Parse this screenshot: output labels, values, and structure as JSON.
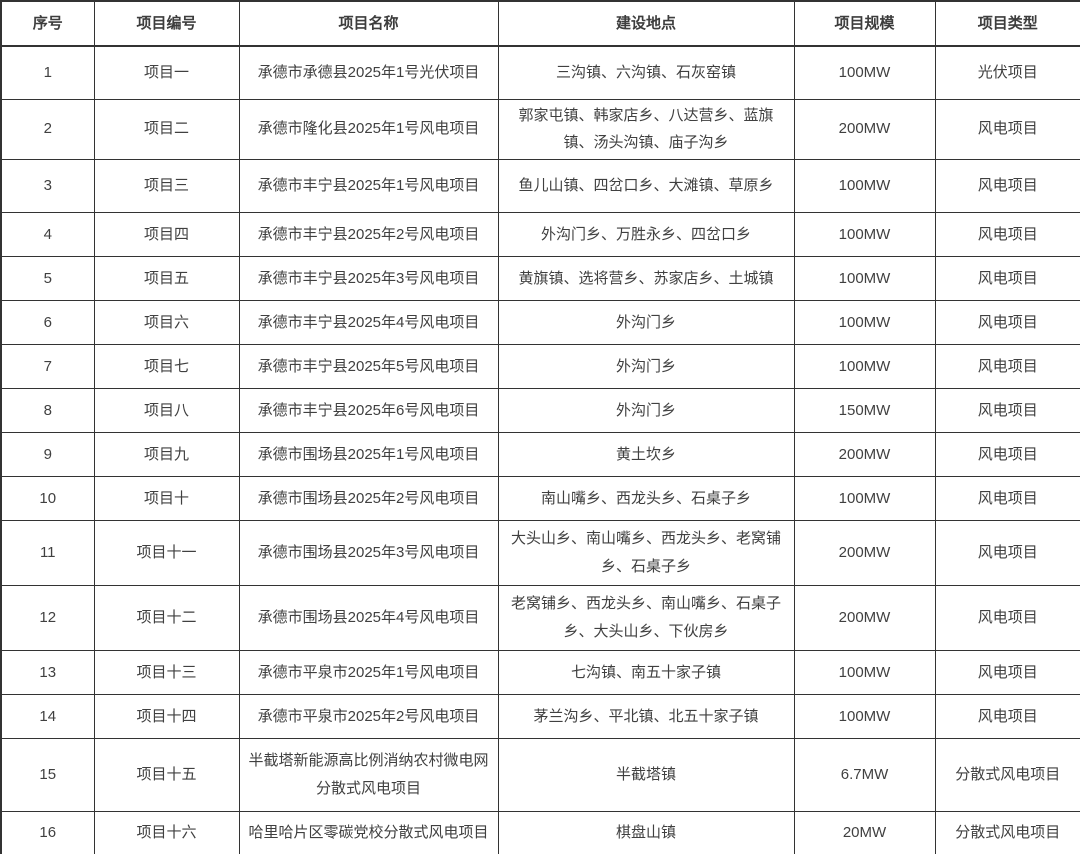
{
  "table": {
    "columns": [
      {
        "key": "index",
        "label": "序号"
      },
      {
        "key": "code",
        "label": "项目编号"
      },
      {
        "key": "name",
        "label": "项目名称"
      },
      {
        "key": "location",
        "label": "建设地点"
      },
      {
        "key": "scale",
        "label": "项目规模"
      },
      {
        "key": "type",
        "label": "项目类型"
      }
    ],
    "rows": [
      {
        "index": "1",
        "code": "项目一",
        "name": "承德市承德县2025年1号光伏项目",
        "location": "三沟镇、六沟镇、石灰窑镇",
        "scale": "100MW",
        "type": "光伏项目"
      },
      {
        "index": "2",
        "code": "项目二",
        "name": "承德市隆化县2025年1号风电项目",
        "location": "郭家屯镇、韩家店乡、八达营乡、蓝旗镇、汤头沟镇、庙子沟乡",
        "scale": "200MW",
        "type": "风电项目"
      },
      {
        "index": "3",
        "code": "项目三",
        "name": "承德市丰宁县2025年1号风电项目",
        "location": "鱼儿山镇、四岔口乡、大滩镇、草原乡",
        "scale": "100MW",
        "type": "风电项目"
      },
      {
        "index": "4",
        "code": "项目四",
        "name": "承德市丰宁县2025年2号风电项目",
        "location": "外沟门乡、万胜永乡、四岔口乡",
        "scale": "100MW",
        "type": "风电项目"
      },
      {
        "index": "5",
        "code": "项目五",
        "name": "承德市丰宁县2025年3号风电项目",
        "location": "黄旗镇、选将营乡、苏家店乡、土城镇",
        "scale": "100MW",
        "type": "风电项目"
      },
      {
        "index": "6",
        "code": "项目六",
        "name": "承德市丰宁县2025年4号风电项目",
        "location": "外沟门乡",
        "scale": "100MW",
        "type": "风电项目"
      },
      {
        "index": "7",
        "code": "项目七",
        "name": "承德市丰宁县2025年5号风电项目",
        "location": "外沟门乡",
        "scale": "100MW",
        "type": "风电项目"
      },
      {
        "index": "8",
        "code": "项目八",
        "name": "承德市丰宁县2025年6号风电项目",
        "location": "外沟门乡",
        "scale": "150MW",
        "type": "风电项目"
      },
      {
        "index": "9",
        "code": "项目九",
        "name": "承德市围场县2025年1号风电项目",
        "location": "黄土坎乡",
        "scale": "200MW",
        "type": "风电项目"
      },
      {
        "index": "10",
        "code": "项目十",
        "name": "承德市围场县2025年2号风电项目",
        "location": "南山嘴乡、西龙头乡、石桌子乡",
        "scale": "100MW",
        "type": "风电项目"
      },
      {
        "index": "11",
        "code": "项目十一",
        "name": "承德市围场县2025年3号风电项目",
        "location": "大头山乡、南山嘴乡、西龙头乡、老窝铺乡、石桌子乡",
        "scale": "200MW",
        "type": "风电项目"
      },
      {
        "index": "12",
        "code": "项目十二",
        "name": "承德市围场县2025年4号风电项目",
        "location": "老窝铺乡、西龙头乡、南山嘴乡、石桌子乡、大头山乡、下伙房乡",
        "scale": "200MW",
        "type": "风电项目"
      },
      {
        "index": "13",
        "code": "项目十三",
        "name": "承德市平泉市2025年1号风电项目",
        "location": "七沟镇、南五十家子镇",
        "scale": "100MW",
        "type": "风电项目"
      },
      {
        "index": "14",
        "code": "项目十四",
        "name": "承德市平泉市2025年2号风电项目",
        "location": "茅兰沟乡、平北镇、北五十家子镇",
        "scale": "100MW",
        "type": "风电项目"
      },
      {
        "index": "15",
        "code": "项目十五",
        "name": "半截塔新能源高比例消纳农村微电网分散式风电项目",
        "location": "半截塔镇",
        "scale": "6.7MW",
        "type": "分散式风电项目"
      },
      {
        "index": "16",
        "code": "项目十六",
        "name": "哈里哈片区零碳党校分散式风电项目",
        "location": "棋盘山镇",
        "scale": "20MW",
        "type": "分散式风电项目"
      }
    ]
  },
  "colors": {
    "border": "#333333",
    "text": "#404040",
    "background": "#ffffff"
  }
}
